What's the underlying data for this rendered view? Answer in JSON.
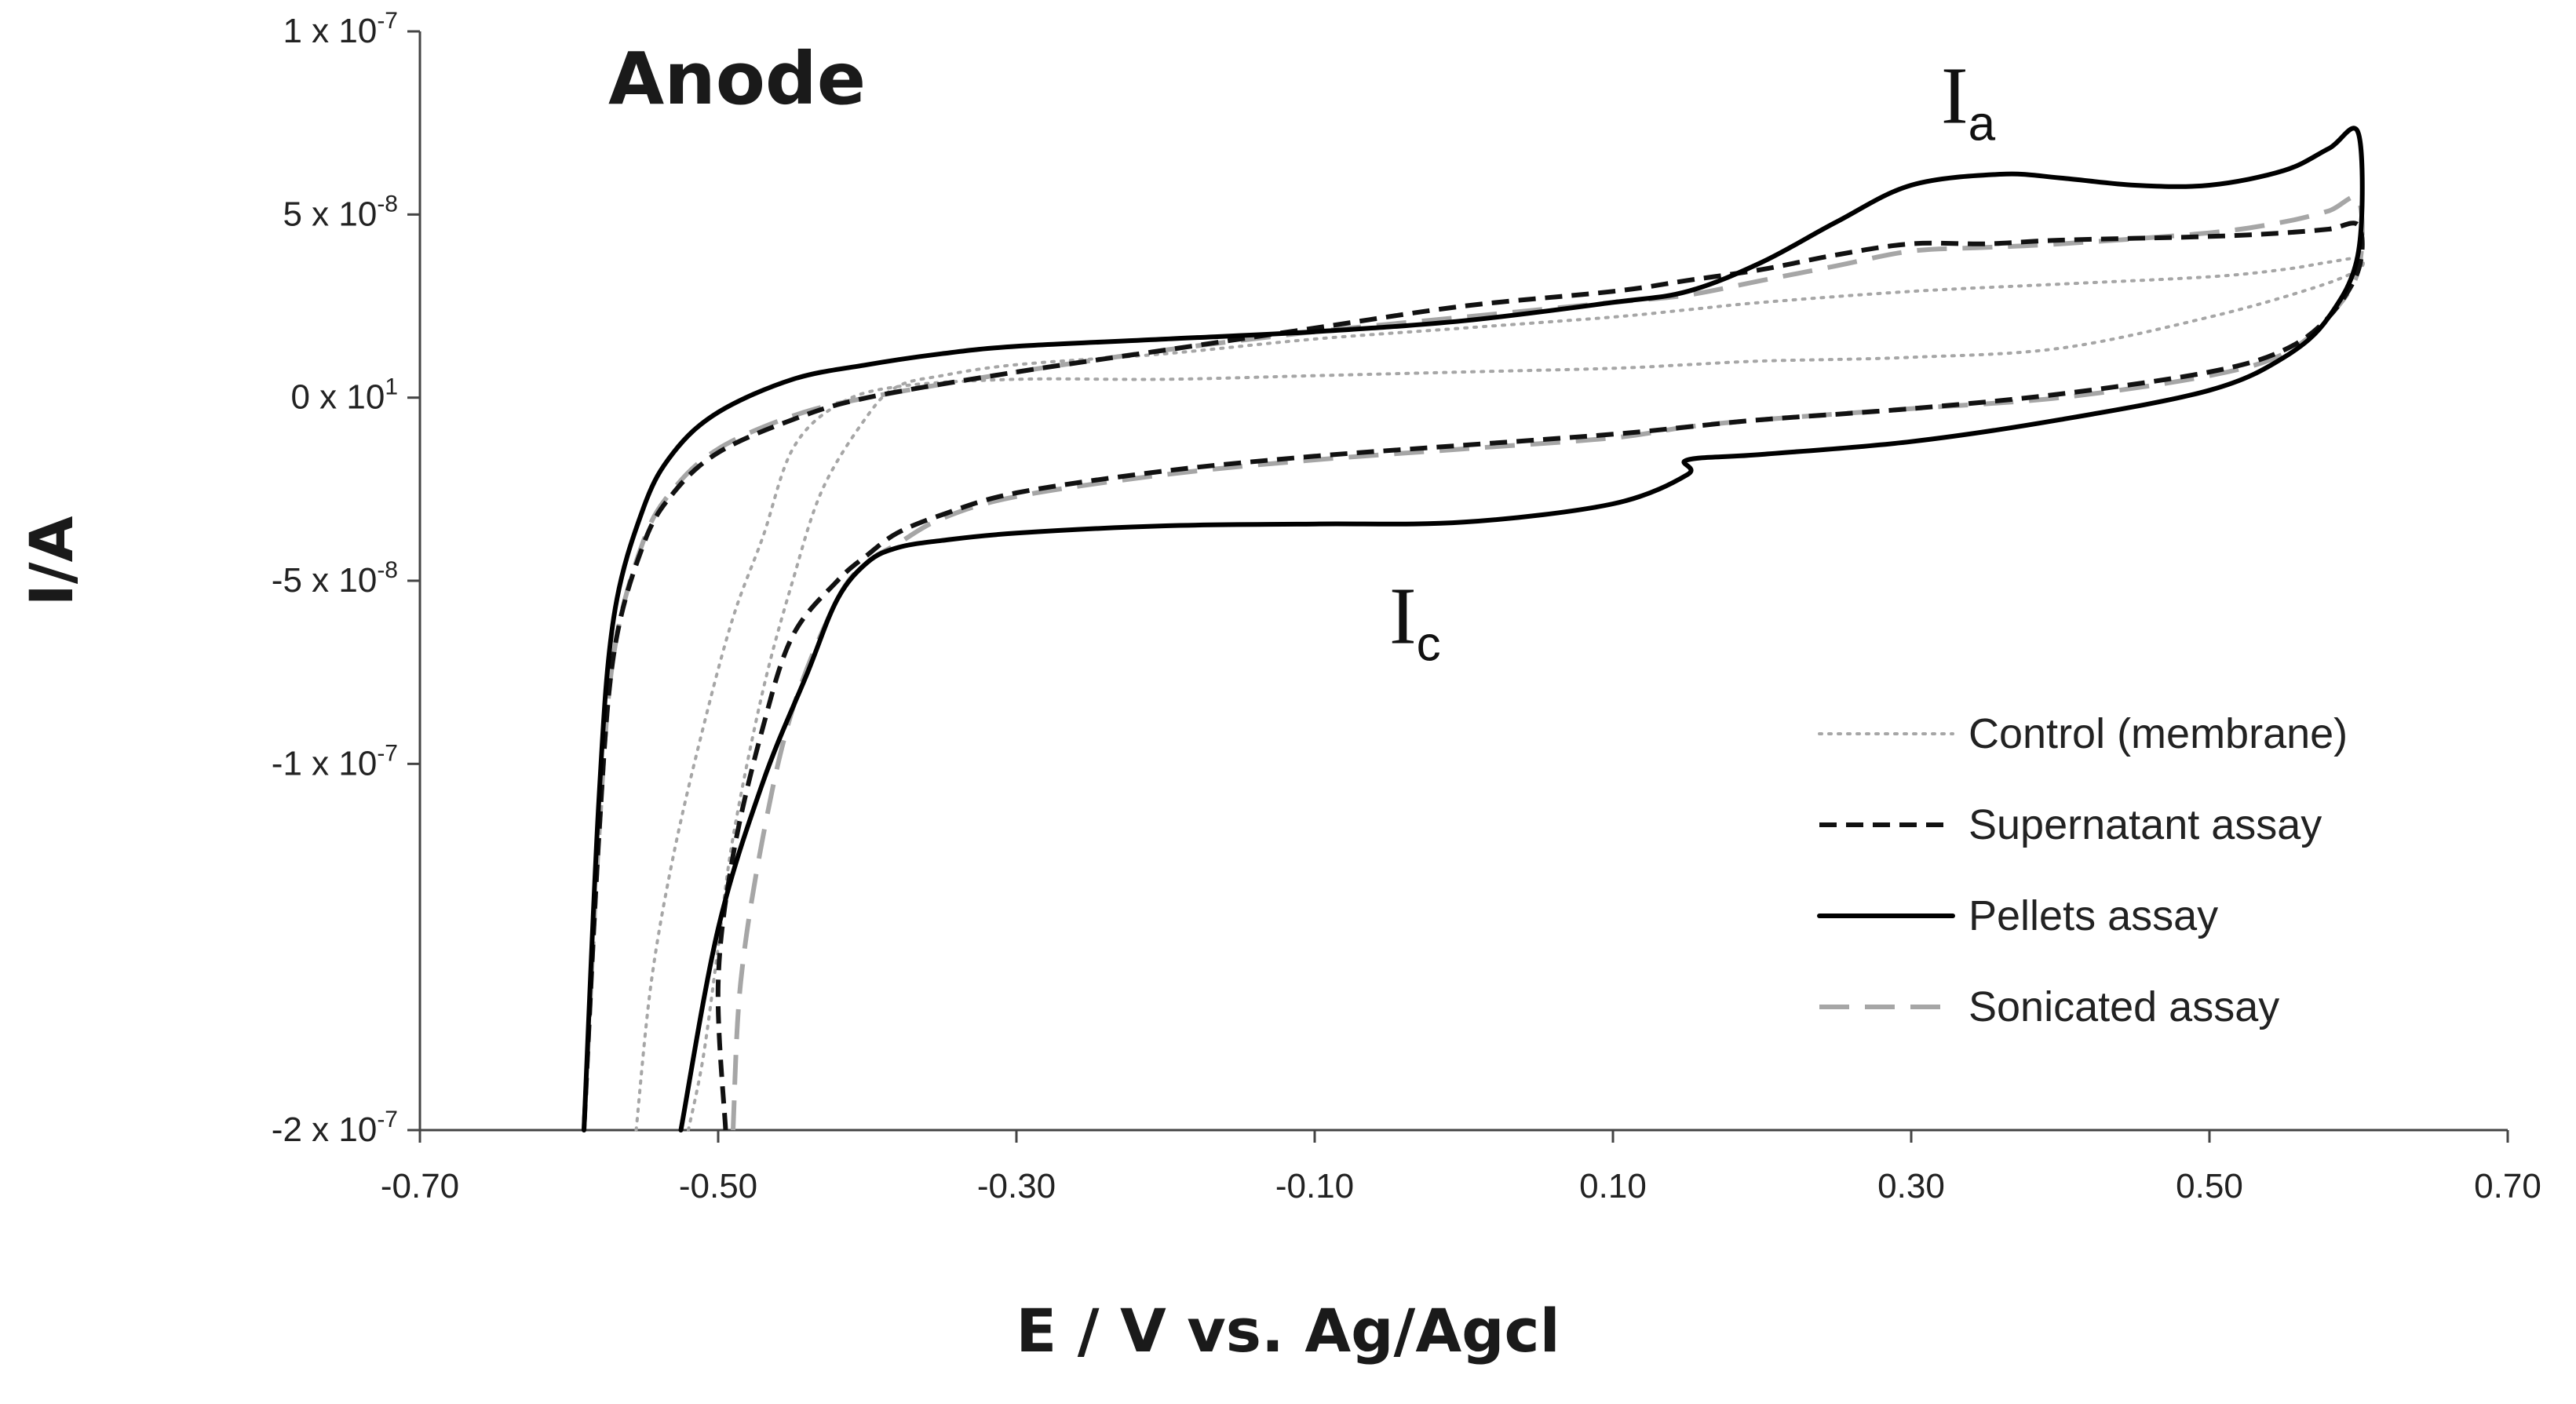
{
  "chart_data": {
    "type": "line",
    "title": "Anode",
    "xlabel": "E / V vs. Ag/Agcl",
    "ylabel": "I/A",
    "xlim": [
      -0.7,
      0.7
    ],
    "ylim": [
      -2e-07,
      1e-07
    ],
    "x_ticks": [
      {
        "value": -0.7,
        "label": "-0.70"
      },
      {
        "value": -0.5,
        "label": "-0.50"
      },
      {
        "value": -0.3,
        "label": "-0.30"
      },
      {
        "value": -0.1,
        "label": "-0.10"
      },
      {
        "value": 0.1,
        "label": "0.10"
      },
      {
        "value": 0.3,
        "label": "0.30"
      },
      {
        "value": 0.5,
        "label": "0.50"
      },
      {
        "value": 0.7,
        "label": "0.70"
      }
    ],
    "y_ticks": [
      {
        "value": 1e-07,
        "mantissa": "1 x 10",
        "exp": "-7"
      },
      {
        "value": 5e-08,
        "mantissa": "5 x 10",
        "exp": "-8"
      },
      {
        "value": 0,
        "mantissa": "0 x 10",
        "exp": "1"
      },
      {
        "value": -5e-08,
        "mantissa": "-5 x 10",
        "exp": "-8"
      },
      {
        "value": -1e-07,
        "mantissa": "-1 x 10",
        "exp": "-7"
      },
      {
        "value": -2e-07,
        "mantissa": "-2 x 10",
        "exp": "-7"
      }
    ],
    "grid": false,
    "legend_position": "lower-right",
    "annotations": [
      {
        "main": "I",
        "sub": "a",
        "x": 0.32,
        "y": 7.5e-08
      },
      {
        "main": "I",
        "sub": "c",
        "x": -0.05,
        "y": -6.7e-08
      }
    ],
    "series": [
      {
        "name": "Control (membrane)",
        "color": "#a6a6a6",
        "style": "dotted",
        "x": [
          -0.555,
          -0.545,
          -0.53,
          -0.51,
          -0.49,
          -0.47,
          -0.45,
          -0.42,
          -0.38,
          -0.3,
          -0.2,
          -0.1,
          0.0,
          0.1,
          0.15,
          0.2,
          0.3,
          0.4,
          0.5,
          0.57,
          0.6,
          0.6,
          0.58,
          0.55,
          0.5,
          0.4,
          0.3,
          0.2,
          0.15,
          0.1,
          0.0,
          -0.1,
          -0.2,
          -0.3,
          -0.35,
          -0.38,
          -0.4,
          -0.43,
          -0.45,
          -0.47,
          -0.49,
          -0.5,
          -0.51,
          -0.52
        ],
        "y": [
          -2e-07,
          -1.6e-07,
          -1.25e-07,
          -9e-08,
          -6e-08,
          -3.8e-08,
          -1.4e-08,
          -2e-09,
          3e-09,
          5e-09,
          5e-09,
          6e-09,
          7e-09,
          8e-09,
          9e-09,
          1e-08,
          1.1e-08,
          1.35e-08,
          2.2e-08,
          3e-08,
          3.5e-08,
          3.8e-08,
          3.7e-08,
          3.5e-08,
          3.3e-08,
          3.1e-08,
          2.9e-08,
          2.6e-08,
          2.4e-08,
          2.2e-08,
          1.9e-08,
          1.6e-08,
          1.2e-08,
          9e-09,
          6e-09,
          3e-09,
          -5e-09,
          -2.5e-08,
          -5e-08,
          -8e-08,
          -1.2e-07,
          -1.5e-07,
          -1.8e-07,
          -2e-07
        ]
      },
      {
        "name": "Supernatant assay",
        "color": "#111111",
        "style": "dashed",
        "x": [
          -0.495,
          -0.5,
          -0.49,
          -0.47,
          -0.45,
          -0.42,
          -0.4,
          -0.38,
          -0.35,
          -0.3,
          -0.2,
          -0.1,
          0.0,
          0.1,
          0.15,
          0.2,
          0.3,
          0.4,
          0.5,
          0.55,
          0.58,
          0.6,
          0.6,
          0.58,
          0.55,
          0.5,
          0.4,
          0.35,
          0.3,
          0.25,
          0.2,
          0.15,
          0.1,
          0.0,
          -0.1,
          -0.2,
          -0.3,
          -0.4,
          -0.45,
          -0.5,
          -0.53,
          -0.55,
          -0.57,
          -0.58,
          -0.59
        ],
        "y": [
          -2e-07,
          -1.6e-07,
          -1.25e-07,
          -9e-08,
          -6.5e-08,
          -5e-08,
          -4.3e-08,
          -3.7e-08,
          -3.2e-08,
          -2.6e-08,
          -2e-08,
          -1.6e-08,
          -1.3e-08,
          -1e-08,
          -8e-09,
          -6e-09,
          -3e-09,
          1e-09,
          7e-09,
          1.3e-08,
          2.2e-08,
          3.5e-08,
          4.7e-08,
          4.6e-08,
          4.5e-08,
          4.4e-08,
          4.3e-08,
          4.2e-08,
          4.2e-08,
          3.9e-08,
          3.5e-08,
          3.2e-08,
          2.9e-08,
          2.5e-08,
          1.9e-08,
          1.3e-08,
          7e-09,
          0.0,
          -6e-09,
          -1.5e-08,
          -2.6e-08,
          -4e-08,
          -7e-08,
          -1.2e-07,
          -2e-07
        ]
      },
      {
        "name": "Pellets assay",
        "color": "#000000",
        "style": "solid",
        "x": [
          -0.525,
          -0.5,
          -0.47,
          -0.44,
          -0.42,
          -0.4,
          -0.38,
          -0.35,
          -0.3,
          -0.2,
          -0.1,
          0.0,
          0.1,
          0.15,
          0.15,
          0.2,
          0.3,
          0.4,
          0.5,
          0.55,
          0.58,
          0.6,
          0.6,
          0.58,
          0.55,
          0.5,
          0.45,
          0.4,
          0.36,
          0.3,
          0.25,
          0.2,
          0.15,
          0.1,
          0.0,
          -0.1,
          -0.2,
          -0.3,
          -0.35,
          -0.4,
          -0.45,
          -0.5,
          -0.53,
          -0.55,
          -0.57,
          -0.58,
          -0.59
        ],
        "y": [
          -2e-07,
          -1.45e-07,
          -1.05e-07,
          -7.5e-08,
          -5.5e-08,
          -4.5e-08,
          -4.1e-08,
          -3.9e-08,
          -3.7e-08,
          -3.5e-08,
          -3.45e-08,
          -3.4e-08,
          -2.9e-08,
          -2.1e-08,
          -1.7e-08,
          -1.55e-08,
          -1.2e-08,
          -6e-09,
          2e-09,
          1.1e-08,
          2.2e-08,
          4e-08,
          7.2e-08,
          6.8e-08,
          6.2e-08,
          5.8e-08,
          5.8e-08,
          6e-08,
          6.1e-08,
          5.8e-08,
          4.8e-08,
          3.7e-08,
          2.9e-08,
          2.6e-08,
          2.1e-08,
          1.8e-08,
          1.6e-08,
          1.4e-08,
          1.2e-08,
          9e-09,
          5e-09,
          -4e-09,
          -1.5e-08,
          -3e-08,
          -6e-08,
          -1.1e-07,
          -2e-07
        ]
      },
      {
        "name": "Sonicated assay",
        "color": "#a6a6a6",
        "style": "long-dashed",
        "x": [
          -0.49,
          -0.485,
          -0.47,
          -0.45,
          -0.42,
          -0.4,
          -0.38,
          -0.35,
          -0.3,
          -0.2,
          -0.1,
          0.0,
          0.1,
          0.15,
          0.2,
          0.3,
          0.4,
          0.5,
          0.55,
          0.58,
          0.6,
          0.6,
          0.58,
          0.55,
          0.5,
          0.4,
          0.35,
          0.3,
          0.25,
          0.2,
          0.15,
          0.1,
          0.0,
          -0.1,
          -0.2,
          -0.3,
          -0.4,
          -0.45,
          -0.5,
          -0.53,
          -0.55,
          -0.57,
          -0.58,
          -0.59
        ],
        "y": [
          -2e-07,
          -1.6e-07,
          -1.2e-07,
          -8.5e-08,
          -5.5e-08,
          -4.5e-08,
          -4e-08,
          -3.3e-08,
          -2.7e-08,
          -2.1e-08,
          -1.7e-08,
          -1.4e-08,
          -1.1e-08,
          -8e-09,
          -6e-09,
          -3e-09,
          0.0,
          6e-09,
          1.2e-08,
          2.2e-08,
          3.5e-08,
          5.4e-08,
          5.1e-08,
          4.8e-08,
          4.5e-08,
          4.2e-08,
          4.1e-08,
          4e-08,
          3.6e-08,
          3.2e-08,
          2.8e-08,
          2.6e-08,
          2.2e-08,
          1.8e-08,
          1.3e-08,
          7e-09,
          0.0,
          -5e-09,
          -1.4e-08,
          -2.5e-08,
          -3.9e-08,
          -7e-08,
          -1.2e-07,
          -2e-07
        ]
      }
    ]
  }
}
